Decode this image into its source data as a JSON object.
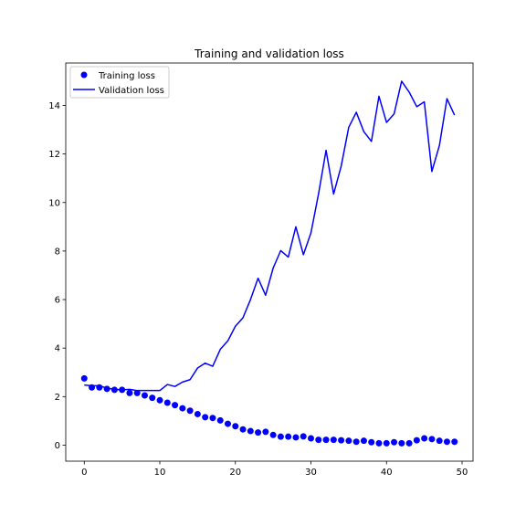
{
  "chart_data": {
    "type": "line",
    "title": "Training and validation loss",
    "xlabel": "",
    "ylabel": "",
    "xlim": [
      -2.45,
      51.45
    ],
    "ylim": [
      -0.66,
      15.75
    ],
    "xticks": [
      0,
      10,
      20,
      30,
      40,
      50
    ],
    "yticks": [
      0,
      2,
      4,
      6,
      8,
      10,
      12,
      14
    ],
    "grid": false,
    "legend_position": "upper-left",
    "x": [
      0,
      1,
      2,
      3,
      4,
      5,
      6,
      7,
      8,
      9,
      10,
      11,
      12,
      13,
      14,
      15,
      16,
      17,
      18,
      19,
      20,
      21,
      22,
      23,
      24,
      25,
      26,
      27,
      28,
      29,
      30,
      31,
      32,
      33,
      34,
      35,
      36,
      37,
      38,
      39,
      40,
      41,
      42,
      43,
      44,
      45,
      46,
      47,
      48,
      49
    ],
    "series": [
      {
        "name": "Training loss",
        "style": "markers",
        "color": "#0000ff",
        "values": [
          2.75,
          2.38,
          2.38,
          2.32,
          2.28,
          2.28,
          2.15,
          2.15,
          2.05,
          1.95,
          1.85,
          1.75,
          1.65,
          1.52,
          1.42,
          1.28,
          1.15,
          1.12,
          1.02,
          0.88,
          0.78,
          0.65,
          0.58,
          0.52,
          0.55,
          0.42,
          0.35,
          0.35,
          0.32,
          0.36,
          0.28,
          0.22,
          0.22,
          0.22,
          0.2,
          0.18,
          0.14,
          0.18,
          0.12,
          0.08,
          0.08,
          0.12,
          0.08,
          0.08,
          0.2,
          0.28,
          0.25,
          0.18,
          0.14,
          0.14
        ]
      },
      {
        "name": "Validation loss",
        "style": "line",
        "color": "#0000ff",
        "values": [
          2.48,
          2.45,
          2.45,
          2.35,
          2.3,
          2.28,
          2.3,
          2.25,
          2.25,
          2.25,
          2.25,
          2.5,
          2.42,
          2.6,
          2.7,
          3.18,
          3.38,
          3.25,
          3.95,
          4.3,
          4.9,
          5.25,
          6,
          6.88,
          6.18,
          7.3,
          8.02,
          7.75,
          9,
          7.85,
          8.75,
          10.35,
          12.15,
          10.35,
          11.5,
          13.1,
          13.72,
          12.92,
          12.52,
          14.38,
          13.3,
          13.65,
          15,
          14.55,
          13.95,
          14.15,
          11.28,
          12.35,
          14.28,
          13.6
        ]
      }
    ]
  }
}
